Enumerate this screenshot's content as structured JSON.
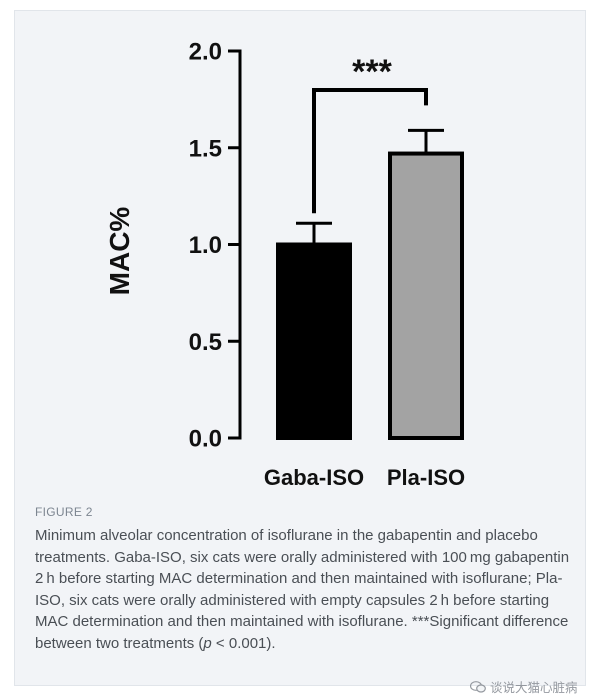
{
  "figure": {
    "label": "FIGURE 2",
    "caption_parts": {
      "before_p": "Minimum alveolar concentration of isoflurane in the gabapentin and placebo treatments. Gaba-ISO, six cats were orally administered with 100 mg gabapentin 2 h before starting MAC determination and then maintained with isoflurane; Pla-ISO, six cats were orally administered with empty capsules 2 h before starting MAC determination and then maintained with isoflurane. ***Significant difference between two treatments (",
      "p": "p",
      "after_p": " < 0.001)."
    },
    "watermark": "谈说大猫心脏病"
  },
  "chart_data": {
    "type": "bar",
    "categories": [
      "Gaba-ISO",
      "Pla-ISO"
    ],
    "values": [
      1.0,
      1.47
    ],
    "errors": [
      0.11,
      0.12
    ],
    "bar_colors": [
      "#000000",
      "#a3a3a3"
    ],
    "bar_outline": "#000000",
    "ylabel": "MAC%",
    "xlabel": "",
    "ylim": [
      0.0,
      2.0
    ],
    "yticks": [
      "0.0",
      "0.5",
      "1.0",
      "1.5",
      "2.0"
    ],
    "significance": {
      "label": "***",
      "between": [
        "Gaba-ISO",
        "Pla-ISO"
      ]
    },
    "grid": false,
    "legend": "none"
  }
}
